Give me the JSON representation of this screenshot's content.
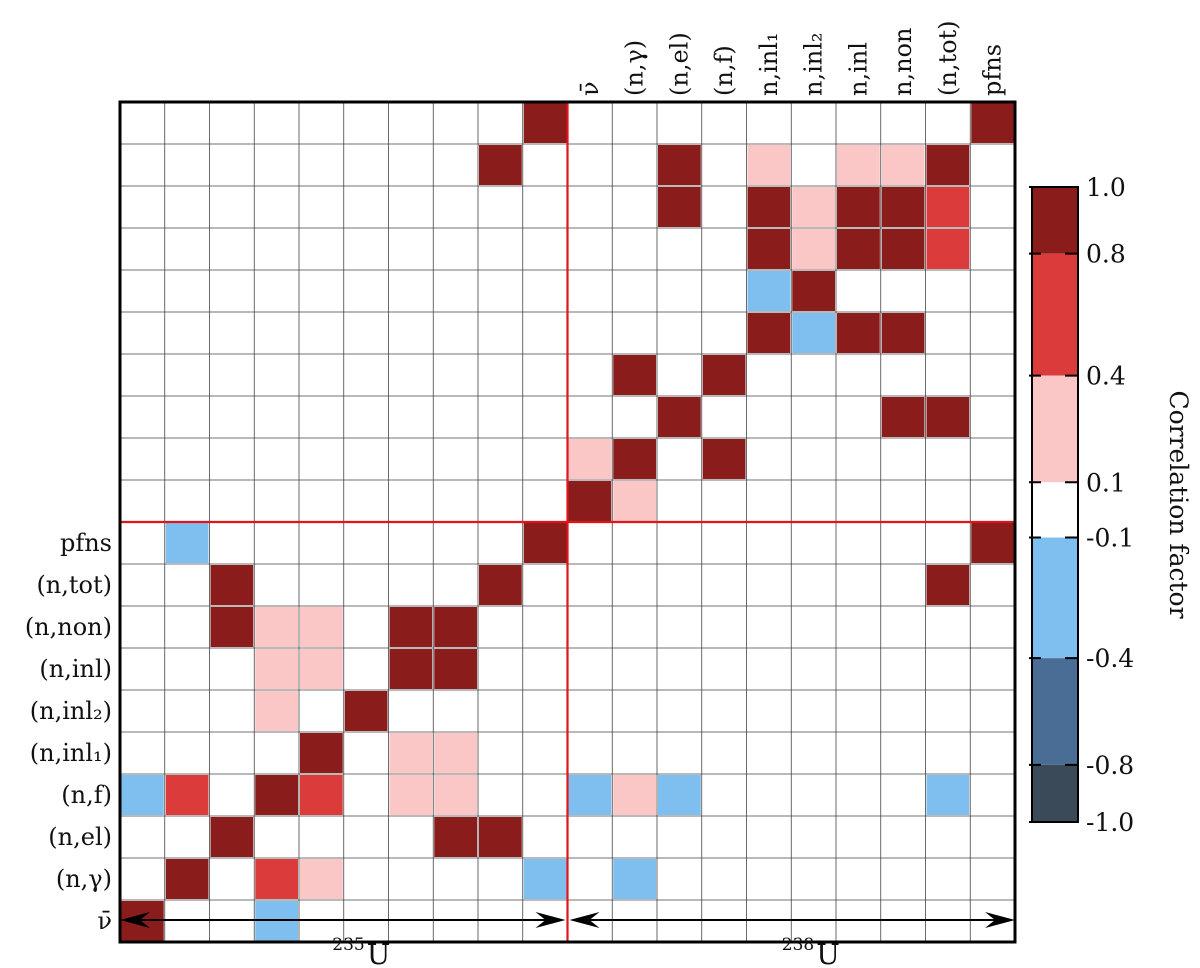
{
  "chart_data": {
    "type": "heatmap",
    "blocks": [
      "ν̄",
      "(n,γ)",
      "(n,el)",
      "(n,f)",
      "n,inl₁",
      "n,inl₂",
      "n,inl",
      "n,non",
      "(n,tot)",
      "pfns"
    ],
    "row_labels": [
      "pfns",
      "(n,tot)",
      "(n,non)",
      "(n,inl)",
      "(n,inl₂)",
      "(n,inl₁)",
      "(n,f)",
      "(n,el)",
      "(n,γ)",
      "ν̄"
    ],
    "top_labels": [
      "ν̄",
      "(n,γ)",
      "(n,el)",
      "(n,f)",
      "n,inl₁",
      "n,inl₂",
      "n,inl",
      "n,non",
      "(n,tot)",
      "pfns"
    ],
    "isotopes": [
      {
        "label": "235",
        "symbol": "U"
      },
      {
        "label": "238",
        "symbol": "U"
      }
    ],
    "colorbar": {
      "title": "Correlation factor",
      "ticks": [
        "1.0",
        "0.8",
        "0.4",
        "0.1",
        "-0.1",
        "-0.4",
        "-0.8",
        "-1.0"
      ],
      "bands": [
        {
          "from": 0.8,
          "to": 1.0,
          "color": "#8b1c1c"
        },
        {
          "from": 0.4,
          "to": 0.8,
          "color": "#dc3b3b"
        },
        {
          "from": 0.1,
          "to": 0.4,
          "color": "#fac6c6"
        },
        {
          "from": -0.1,
          "to": 0.1,
          "color": "#ffffff"
        },
        {
          "from": -0.4,
          "to": -0.1,
          "color": "#7fbfef"
        },
        {
          "from": -0.8,
          "to": -0.4,
          "color": "#4a6d95"
        },
        {
          "from": -1.0,
          "to": -0.8,
          "color": "#3b4a58"
        }
      ]
    },
    "cells": [
      {
        "r": 0,
        "c": 0,
        "v": 0.9
      },
      {
        "r": 1,
        "c": 1,
        "v": 0.9
      },
      {
        "r": 2,
        "c": 2,
        "v": 0.95
      },
      {
        "r": 3,
        "c": 3,
        "v": 0.9
      },
      {
        "r": 4,
        "c": 4,
        "v": 0.95
      },
      {
        "r": 5,
        "c": 5,
        "v": 0.95
      },
      {
        "r": 6,
        "c": 6,
        "v": 0.9
      },
      {
        "r": 7,
        "c": 7,
        "v": 0.9
      },
      {
        "r": 8,
        "c": 8,
        "v": 0.95
      },
      {
        "r": 9,
        "c": 9,
        "v": 0.95
      },
      {
        "r": 10,
        "c": 10,
        "v": 0.9
      },
      {
        "r": 11,
        "c": 11,
        "v": 0.9
      },
      {
        "r": 12,
        "c": 12,
        "v": 0.95
      },
      {
        "r": 13,
        "c": 13,
        "v": 0.9
      },
      {
        "r": 14,
        "c": 14,
        "v": 0.95
      },
      {
        "r": 15,
        "c": 15,
        "v": 0.95
      },
      {
        "r": 16,
        "c": 16,
        "v": 0.9
      },
      {
        "r": 17,
        "c": 17,
        "v": 0.9
      },
      {
        "r": 18,
        "c": 18,
        "v": 0.95
      },
      {
        "r": 19,
        "c": 19,
        "v": 0.95
      },
      {
        "r": 7,
        "c": 2,
        "v": 0.95
      },
      {
        "r": 2,
        "c": 7,
        "v": 0.95
      },
      {
        "r": 8,
        "c": 2,
        "v": 0.95
      },
      {
        "r": 2,
        "c": 8,
        "v": 0.95
      },
      {
        "r": 6,
        "c": 7,
        "v": 0.85
      },
      {
        "r": 7,
        "c": 6,
        "v": 0.85
      },
      {
        "r": 4,
        "c": 6,
        "v": 0.3
      },
      {
        "r": 4,
        "c": 7,
        "v": 0.25
      },
      {
        "r": 6,
        "c": 4,
        "v": 0.3
      },
      {
        "r": 7,
        "c": 4,
        "v": 0.25
      },
      {
        "r": 3,
        "c": 0,
        "v": -0.2
      },
      {
        "r": 3,
        "c": 1,
        "v": 0.6
      },
      {
        "r": 3,
        "c": 4,
        "v": 0.6
      },
      {
        "r": 1,
        "c": 3,
        "v": 0.6
      },
      {
        "r": 1,
        "c": 4,
        "v": 0.3
      },
      {
        "r": 9,
        "c": 1,
        "v": -0.3
      },
      {
        "r": 1,
        "c": 9,
        "v": -0.3
      },
      {
        "r": 0,
        "c": 3,
        "v": -0.2
      },
      {
        "r": 5,
        "c": 3,
        "v": 0.3
      },
      {
        "r": 6,
        "c": 3,
        "v": 0.3
      },
      {
        "r": 7,
        "c": 3,
        "v": 0.3
      },
      {
        "r": 3,
        "c": 6,
        "v": 0.3
      },
      {
        "r": 3,
        "c": 7,
        "v": 0.3
      },
      {
        "r": 17,
        "c": 12,
        "v": 0.95
      },
      {
        "r": 12,
        "c": 17,
        "v": 0.95
      },
      {
        "r": 18,
        "c": 12,
        "v": 0.95
      },
      {
        "r": 12,
        "c": 18,
        "v": 0.95
      },
      {
        "r": 16,
        "c": 14,
        "v": 0.9
      },
      {
        "r": 16,
        "c": 16,
        "v": 0.9
      },
      {
        "r": 16,
        "c": 17,
        "v": 0.9
      },
      {
        "r": 17,
        "c": 14,
        "v": 0.9
      },
      {
        "r": 17,
        "c": 16,
        "v": 0.9
      },
      {
        "r": 17,
        "c": 17,
        "v": 0.9
      },
      {
        "r": 14,
        "c": 16,
        "v": 0.9
      },
      {
        "r": 14,
        "c": 17,
        "v": 0.9
      },
      {
        "r": 16,
        "c": 18,
        "v": 0.5
      },
      {
        "r": 17,
        "c": 18,
        "v": 0.5
      },
      {
        "r": 18,
        "c": 16,
        "v": 0.3
      },
      {
        "r": 18,
        "c": 17,
        "v": 0.3
      },
      {
        "r": 18,
        "c": 14,
        "v": 0.3
      },
      {
        "r": 14,
        "c": 15,
        "v": -0.3
      },
      {
        "r": 15,
        "c": 14,
        "v": -0.3
      },
      {
        "r": 16,
        "c": 15,
        "v": 0.3
      },
      {
        "r": 17,
        "c": 15,
        "v": 0.3
      },
      {
        "r": 13,
        "c": 11,
        "v": 0.8
      },
      {
        "r": 11,
        "c": 13,
        "v": 0.8
      },
      {
        "r": 11,
        "c": 10,
        "v": 0.3
      },
      {
        "r": 10,
        "c": 11,
        "v": 0.3
      },
      {
        "r": 19,
        "c": 9,
        "v": 0.95
      },
      {
        "r": 9,
        "c": 19,
        "v": 0.95
      },
      {
        "r": 8,
        "c": 18,
        "v": 0.95
      },
      {
        "r": 18,
        "c": 8,
        "v": 0.95
      },
      {
        "r": 3,
        "c": 10,
        "v": -0.3
      },
      {
        "r": 3,
        "c": 12,
        "v": -0.3
      },
      {
        "r": 3,
        "c": 11,
        "v": 0.3
      },
      {
        "r": 3,
        "c": 18,
        "v": -0.3
      },
      {
        "r": 1,
        "c": 11,
        "v": -0.2
      }
    ]
  }
}
